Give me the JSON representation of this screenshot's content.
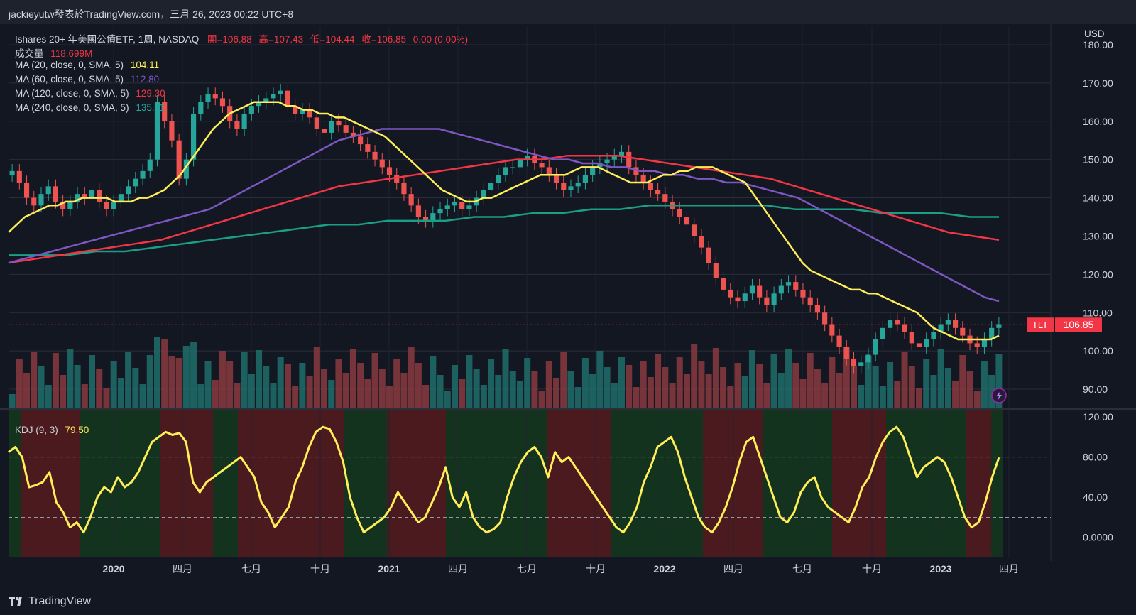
{
  "header": {
    "title": "jackieyutw發表於TradingView.com，三月 26, 2023 00:22 UTC+8"
  },
  "legend": {
    "symbol": "Ishares 20+ 年美國公債ETF, 1周, NASDAQ",
    "open_label": "開=",
    "open": "106.88",
    "high_label": "高=",
    "high": "107.43",
    "low_label": "低=",
    "low": "104.44",
    "close_label": "收=",
    "close": "106.85",
    "change": "0.00 (0.00%)",
    "volume_label": "成交量",
    "volume": "118.699M",
    "ma": [
      {
        "label": "MA (20, close, 0, SMA, 5)",
        "value": "104.11",
        "color": "#ffee58"
      },
      {
        "label": "MA (60, close, 0, SMA, 5)",
        "value": "112.80",
        "color": "#7e57c2"
      },
      {
        "label": "MA (120, close, 0, SMA, 5)",
        "value": "129.30",
        "color": "#f23645"
      },
      {
        "label": "MA (240, close, 0, SMA, 5)",
        "value": "135.11",
        "color": "#26a69a"
      }
    ]
  },
  "kdj": {
    "label": "KDJ (9, 3)",
    "value": "79.50"
  },
  "tag": {
    "symbol": "TLT",
    "price": "106.85"
  },
  "currency": "USD",
  "footer": {
    "brand": "TradingView"
  },
  "colors": {
    "up": "#26a69a",
    "down": "#ef5350",
    "bg": "#131722",
    "ma20": "#ffee58",
    "ma60": "#7e57c2",
    "ma120": "#f23645",
    "ma240": "#1b9e86",
    "kdj": "#ffee58"
  },
  "chart_data": [
    {
      "type": "candlestick",
      "title": "Ishares 20+ 年美國公債ETF, 1周, NASDAQ",
      "ylim": [
        85,
        185
      ],
      "price_ticks": [
        "180.00",
        "170.00",
        "160.00",
        "150.00",
        "140.00",
        "130.00",
        "120.00",
        "110.00",
        "100.00",
        "90.00"
      ],
      "x_ticks": [
        "2020",
        "四月",
        "七月",
        "十月",
        "2021",
        "四月",
        "七月",
        "十月",
        "2022",
        "四月",
        "七月",
        "十月",
        "2023",
        "四月"
      ],
      "close_series": [
        147,
        144,
        140,
        138,
        141,
        143,
        139,
        137,
        139,
        141,
        140,
        142,
        139,
        137,
        139,
        141,
        143,
        145,
        147,
        150,
        165,
        160,
        155,
        145,
        150,
        162,
        165,
        167,
        166,
        164,
        160,
        158,
        162,
        164,
        165,
        166,
        167,
        168,
        164,
        162,
        163,
        161,
        158,
        157,
        160,
        159,
        157,
        156,
        154,
        152,
        150,
        148,
        146,
        144,
        141,
        138,
        135,
        134,
        136,
        137,
        138,
        139,
        137,
        138,
        140,
        142,
        144,
        146,
        148,
        148,
        150,
        151,
        149,
        148,
        146,
        144,
        142,
        143,
        144,
        146,
        148,
        149,
        150,
        151,
        152,
        148,
        146,
        144,
        142,
        141,
        139,
        137,
        135,
        133,
        130,
        127,
        123,
        119,
        116,
        114,
        113,
        115,
        117,
        114,
        112,
        115,
        117,
        118,
        116,
        114,
        112,
        110,
        107,
        104,
        101,
        98,
        96,
        97,
        99,
        103,
        106,
        108,
        107,
        105,
        102,
        101,
        103,
        105,
        107,
        108,
        106,
        104,
        102,
        101,
        103,
        106,
        107
      ],
      "ma20": [
        131,
        133,
        135,
        136,
        137,
        138,
        138,
        139,
        139,
        140,
        140,
        140,
        140,
        139,
        139,
        139,
        140,
        140,
        141,
        142,
        144,
        146,
        149,
        152,
        155,
        158,
        160,
        162,
        163,
        164,
        165,
        165,
        165,
        165,
        164,
        164,
        163,
        163,
        162,
        162,
        161,
        161,
        160,
        159,
        158,
        157,
        156,
        154,
        152,
        150,
        148,
        146,
        144,
        142,
        141,
        140,
        139,
        139,
        140,
        140,
        141,
        142,
        143,
        144,
        145,
        146,
        146,
        146,
        146,
        147,
        148,
        148,
        148,
        147,
        146,
        145,
        144,
        144,
        144,
        145,
        146,
        146,
        147,
        147,
        148,
        148,
        148,
        147,
        146,
        145,
        144,
        141,
        138,
        135,
        132,
        129,
        126,
        123,
        121,
        120,
        119,
        118,
        117,
        116,
        116,
        115,
        115,
        114,
        113,
        112,
        111,
        110,
        108,
        106,
        105,
        104,
        103,
        103,
        103,
        103,
        103,
        104
      ],
      "ma60": [
        123,
        124,
        125,
        126,
        127,
        128,
        129,
        130,
        131,
        132,
        133,
        134,
        135,
        136,
        137,
        139,
        141,
        143,
        145,
        147,
        149,
        151,
        153,
        155,
        156,
        157,
        158,
        158,
        158,
        158,
        158,
        157,
        156,
        155,
        154,
        153,
        152,
        151,
        150,
        150,
        149,
        149,
        148,
        148,
        147,
        147,
        146,
        146,
        145,
        145,
        144,
        144,
        143,
        142,
        141,
        140,
        138,
        136,
        134,
        132,
        130,
        128,
        126,
        124,
        122,
        120,
        118,
        116,
        114,
        113
      ],
      "ma120": [
        123,
        124,
        125,
        126,
        127,
        128,
        129,
        131,
        133,
        135,
        137,
        139,
        141,
        143,
        144,
        145,
        146,
        147,
        148,
        149,
        150,
        150,
        151,
        151,
        151,
        150,
        149,
        148,
        147,
        146,
        145,
        143,
        141,
        139,
        137,
        135,
        133,
        131,
        130,
        129
      ],
      "ma240": [
        125,
        125,
        125,
        126,
        126,
        127,
        128,
        129,
        130,
        131,
        132,
        133,
        133,
        134,
        134,
        134,
        135,
        135,
        136,
        136,
        137,
        137,
        138,
        138,
        138,
        138,
        138,
        137,
        137,
        137,
        136,
        136,
        136,
        135,
        135
      ],
      "last_price": 106.85
    },
    {
      "type": "line",
      "title": "KDJ (9, 3)",
      "ylim": [
        -20,
        125
      ],
      "y_ticks": [
        "120.00",
        "80.00",
        "40.00",
        "0.0000"
      ],
      "reference_lines": [
        80,
        20
      ],
      "values": [
        85,
        90,
        80,
        50,
        52,
        55,
        65,
        35,
        25,
        10,
        15,
        5,
        20,
        40,
        50,
        45,
        60,
        50,
        55,
        65,
        80,
        95,
        100,
        105,
        102,
        104,
        95,
        55,
        45,
        55,
        60,
        65,
        70,
        75,
        80,
        70,
        60,
        35,
        25,
        10,
        20,
        30,
        55,
        70,
        90,
        105,
        110,
        108,
        95,
        75,
        40,
        20,
        5,
        10,
        15,
        20,
        30,
        45,
        35,
        25,
        15,
        20,
        35,
        50,
        70,
        40,
        30,
        45,
        20,
        10,
        5,
        8,
        15,
        40,
        60,
        75,
        85,
        90,
        80,
        60,
        85,
        75,
        80,
        70,
        60,
        50,
        40,
        30,
        20,
        10,
        5,
        15,
        30,
        55,
        70,
        90,
        95,
        100,
        85,
        60,
        40,
        20,
        10,
        5,
        15,
        30,
        50,
        75,
        95,
        100,
        80,
        60,
        40,
        20,
        15,
        25,
        45,
        55,
        60,
        40,
        30,
        25,
        20,
        15,
        30,
        50,
        60,
        80,
        95,
        105,
        110,
        100,
        80,
        60,
        70,
        75,
        80,
        75,
        60,
        40,
        20,
        10,
        15,
        35,
        60,
        79.5
      ],
      "last_value": 79.5
    }
  ]
}
